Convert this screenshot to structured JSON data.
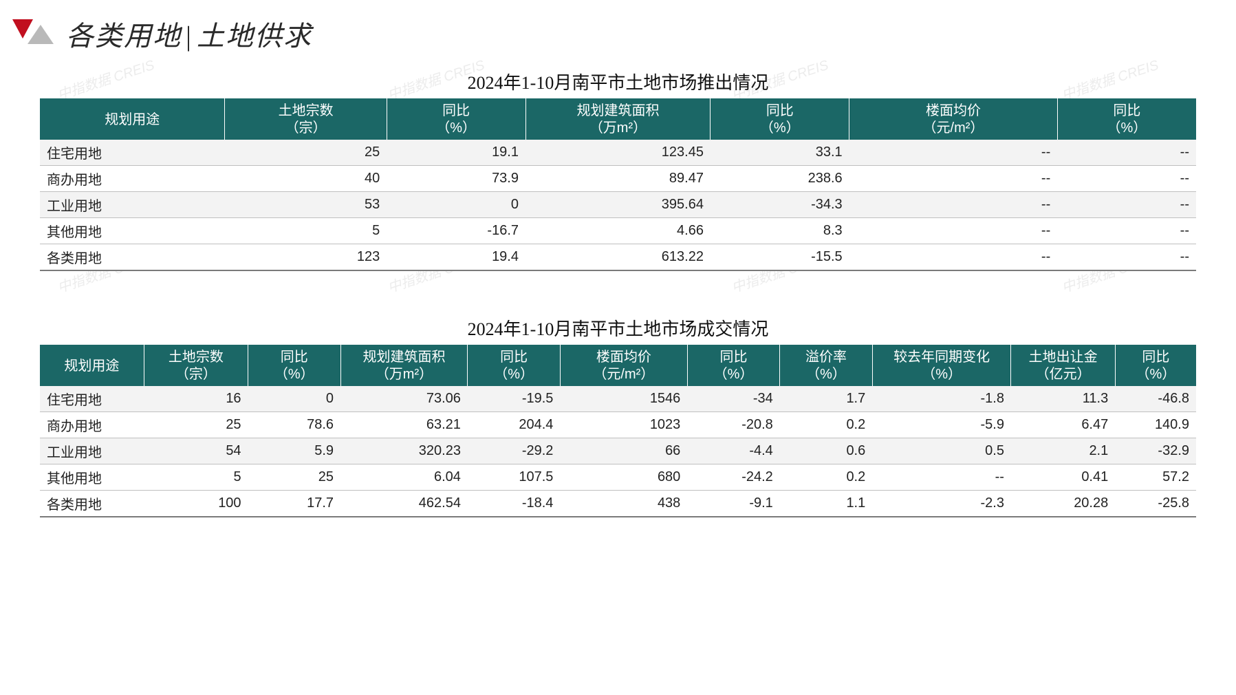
{
  "header": {
    "left": "各类用地",
    "sep": "|",
    "right": "土地供求",
    "logo_colors": {
      "red": "#c10f1f",
      "gray": "#b9b9b9"
    },
    "title_color": "#2a2a2a",
    "fontsize": 40
  },
  "theme": {
    "table_header_bg": "#1b6766",
    "table_header_fg": "#ffffff",
    "row_odd_bg": "#f3f3f3",
    "row_even_bg": "#ffffff",
    "border_color": "#bfbfbf",
    "body_font_size": 20,
    "title_font_size": 26,
    "watermark_text": "中指数据 CREIS",
    "watermark_color": "rgba(150,150,150,0.18)"
  },
  "table1": {
    "title": "2024年1-10月南平市土地市场推出情况",
    "columns": [
      {
        "line1": "规划用途",
        "line2": ""
      },
      {
        "line1": "土地宗数",
        "line2": "（宗）"
      },
      {
        "line1": "同比",
        "line2": "（%）"
      },
      {
        "line1": "规划建筑面积",
        "line2": "（万m²）"
      },
      {
        "line1": "同比",
        "line2": "（%）"
      },
      {
        "line1": "楼面均价",
        "line2": "（元/m²）"
      },
      {
        "line1": "同比",
        "line2": "（%）"
      }
    ],
    "rows": [
      {
        "label": "住宅用地",
        "c": [
          "25",
          "19.1",
          "123.45",
          "33.1",
          "--",
          "--"
        ]
      },
      {
        "label": "商办用地",
        "c": [
          "40",
          "73.9",
          "89.47",
          "238.6",
          "--",
          "--"
        ]
      },
      {
        "label": "工业用地",
        "c": [
          "53",
          "0",
          "395.64",
          "-34.3",
          "--",
          "--"
        ]
      },
      {
        "label": "其他用地",
        "c": [
          "5",
          "-16.7",
          "4.66",
          "8.3",
          "--",
          "--"
        ]
      },
      {
        "label": "各类用地",
        "c": [
          "123",
          "19.4",
          "613.22",
          "-15.5",
          "--",
          "--"
        ]
      }
    ]
  },
  "table2": {
    "title": "2024年1-10月南平市土地市场成交情况",
    "columns": [
      {
        "line1": "规划用途",
        "line2": ""
      },
      {
        "line1": "土地宗数",
        "line2": "（宗）"
      },
      {
        "line1": "同比",
        "line2": "（%）"
      },
      {
        "line1": "规划建筑面积",
        "line2": "（万m²）"
      },
      {
        "line1": "同比",
        "line2": "（%）"
      },
      {
        "line1": "楼面均价",
        "line2": "（元/m²）"
      },
      {
        "line1": "同比",
        "line2": "（%）"
      },
      {
        "line1": "溢价率",
        "line2": "（%）"
      },
      {
        "line1": "较去年同期变化",
        "line2": "（%）"
      },
      {
        "line1": "土地出让金",
        "line2": "（亿元）"
      },
      {
        "line1": "同比",
        "line2": "（%）"
      }
    ],
    "rows": [
      {
        "label": "住宅用地",
        "c": [
          "16",
          "0",
          "73.06",
          "-19.5",
          "1546",
          "-34",
          "1.7",
          "-1.8",
          "11.3",
          "-46.8"
        ]
      },
      {
        "label": "商办用地",
        "c": [
          "25",
          "78.6",
          "63.21",
          "204.4",
          "1023",
          "-20.8",
          "0.2",
          "-5.9",
          "6.47",
          "140.9"
        ]
      },
      {
        "label": "工业用地",
        "c": [
          "54",
          "5.9",
          "320.23",
          "-29.2",
          "66",
          "-4.4",
          "0.6",
          "0.5",
          "2.1",
          "-32.9"
        ]
      },
      {
        "label": "其他用地",
        "c": [
          "5",
          "25",
          "6.04",
          "107.5",
          "680",
          "-24.2",
          "0.2",
          "--",
          "0.41",
          "57.2"
        ]
      },
      {
        "label": "各类用地",
        "c": [
          "100",
          "17.7",
          "462.54",
          "-18.4",
          "438",
          "-9.1",
          "1.1",
          "-2.3",
          "20.28",
          "-25.8"
        ]
      }
    ]
  }
}
